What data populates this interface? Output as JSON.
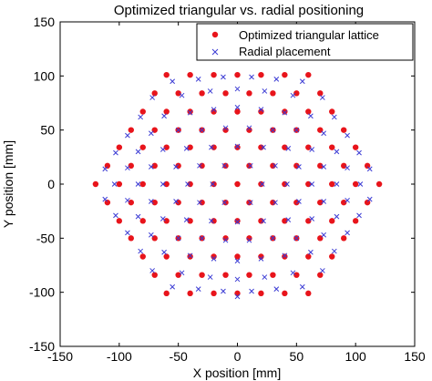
{
  "chart_data": {
    "type": "scatter",
    "title": "Optimized triangular vs. radial positioning",
    "xlabel": "X position [mm]",
    "ylabel": "Y position [mm]",
    "xlim": [
      -150,
      150
    ],
    "ylim": [
      -150,
      150
    ],
    "xticks": [
      "-150",
      "-100",
      "-50",
      "0",
      "50",
      "100",
      "150"
    ],
    "yticks": [
      "150",
      "100",
      "50",
      "0",
      "-50",
      "-100",
      "-150"
    ],
    "legend_position": "top-right",
    "grid": false,
    "series": [
      {
        "name": "Optimized triangular lattice",
        "marker": "dot",
        "color": "#e8141b",
        "points": [
          [
            -60,
            101
          ],
          [
            -40,
            101
          ],
          [
            -20,
            101
          ],
          [
            0,
            101
          ],
          [
            20,
            101
          ],
          [
            40,
            101
          ],
          [
            60,
            101
          ],
          [
            -70,
            84
          ],
          [
            -50,
            84
          ],
          [
            -30,
            84
          ],
          [
            -10,
            84
          ],
          [
            10,
            84
          ],
          [
            30,
            84
          ],
          [
            50,
            84
          ],
          [
            70,
            84
          ],
          [
            -80,
            67
          ],
          [
            -60,
            67
          ],
          [
            -40,
            67
          ],
          [
            -20,
            67
          ],
          [
            0,
            67
          ],
          [
            20,
            67
          ],
          [
            40,
            67
          ],
          [
            60,
            67
          ],
          [
            80,
            67
          ],
          [
            -90,
            50
          ],
          [
            -70,
            50
          ],
          [
            -50,
            50
          ],
          [
            -30,
            50
          ],
          [
            -10,
            50
          ],
          [
            10,
            50
          ],
          [
            30,
            50
          ],
          [
            50,
            50
          ],
          [
            70,
            50
          ],
          [
            90,
            50
          ],
          [
            -100,
            34
          ],
          [
            -80,
            34
          ],
          [
            -60,
            34
          ],
          [
            -40,
            34
          ],
          [
            -20,
            34
          ],
          [
            0,
            34
          ],
          [
            20,
            34
          ],
          [
            40,
            34
          ],
          [
            60,
            34
          ],
          [
            80,
            34
          ],
          [
            100,
            34
          ],
          [
            -110,
            17
          ],
          [
            -90,
            17
          ],
          [
            -70,
            17
          ],
          [
            -50,
            17
          ],
          [
            -30,
            17
          ],
          [
            -10,
            17
          ],
          [
            10,
            17
          ],
          [
            30,
            17
          ],
          [
            50,
            17
          ],
          [
            70,
            17
          ],
          [
            90,
            17
          ],
          [
            110,
            17
          ],
          [
            -120,
            0
          ],
          [
            -100,
            0
          ],
          [
            -80,
            0
          ],
          [
            -60,
            0
          ],
          [
            -40,
            0
          ],
          [
            -20,
            0
          ],
          [
            0,
            0
          ],
          [
            20,
            0
          ],
          [
            40,
            0
          ],
          [
            60,
            0
          ],
          [
            80,
            0
          ],
          [
            100,
            0
          ],
          [
            120,
            0
          ],
          [
            -110,
            -17
          ],
          [
            -90,
            -17
          ],
          [
            -70,
            -17
          ],
          [
            -50,
            -17
          ],
          [
            -30,
            -17
          ],
          [
            -10,
            -17
          ],
          [
            10,
            -17
          ],
          [
            30,
            -17
          ],
          [
            50,
            -17
          ],
          [
            70,
            -17
          ],
          [
            90,
            -17
          ],
          [
            110,
            -17
          ],
          [
            -100,
            -34
          ],
          [
            -80,
            -34
          ],
          [
            -60,
            -34
          ],
          [
            -40,
            -34
          ],
          [
            -20,
            -34
          ],
          [
            0,
            -34
          ],
          [
            20,
            -34
          ],
          [
            40,
            -34
          ],
          [
            60,
            -34
          ],
          [
            80,
            -34
          ],
          [
            100,
            -34
          ],
          [
            -90,
            -50
          ],
          [
            -70,
            -50
          ],
          [
            -50,
            -50
          ],
          [
            -30,
            -50
          ],
          [
            -10,
            -50
          ],
          [
            10,
            -50
          ],
          [
            30,
            -50
          ],
          [
            50,
            -50
          ],
          [
            70,
            -50
          ],
          [
            90,
            -50
          ],
          [
            -80,
            -67
          ],
          [
            -60,
            -67
          ],
          [
            -40,
            -67
          ],
          [
            -20,
            -67
          ],
          [
            0,
            -67
          ],
          [
            20,
            -67
          ],
          [
            40,
            -67
          ],
          [
            60,
            -67
          ],
          [
            80,
            -67
          ],
          [
            -70,
            -84
          ],
          [
            -50,
            -84
          ],
          [
            -30,
            -84
          ],
          [
            -10,
            -84
          ],
          [
            10,
            -84
          ],
          [
            30,
            -84
          ],
          [
            50,
            -84
          ],
          [
            70,
            -84
          ],
          [
            -60,
            -101
          ],
          [
            -40,
            -101
          ],
          [
            -20,
            -101
          ],
          [
            0,
            -101
          ],
          [
            20,
            -101
          ],
          [
            40,
            -101
          ],
          [
            60,
            -101
          ]
        ]
      },
      {
        "name": "Radial placement",
        "marker": "x",
        "color": "#3b3bd4",
        "points": [
          [
            -55,
            95
          ],
          [
            -33,
            97
          ],
          [
            -12,
            99
          ],
          [
            12,
            99
          ],
          [
            33,
            97
          ],
          [
            55,
            95
          ],
          [
            -72,
            80
          ],
          [
            -47,
            82
          ],
          [
            -23,
            86
          ],
          [
            0,
            88
          ],
          [
            23,
            86
          ],
          [
            47,
            82
          ],
          [
            72,
            80
          ],
          [
            -82,
            62
          ],
          [
            -62,
            63
          ],
          [
            -40,
            66
          ],
          [
            -20,
            69
          ],
          [
            0,
            71
          ],
          [
            20,
            69
          ],
          [
            40,
            66
          ],
          [
            62,
            63
          ],
          [
            82,
            62
          ],
          [
            -93,
            45
          ],
          [
            -73,
            47
          ],
          [
            -50,
            50
          ],
          [
            -30,
            50
          ],
          [
            -10,
            52
          ],
          [
            10,
            52
          ],
          [
            30,
            50
          ],
          [
            50,
            50
          ],
          [
            73,
            47
          ],
          [
            93,
            45
          ],
          [
            -103,
            29
          ],
          [
            -84,
            30
          ],
          [
            -63,
            32
          ],
          [
            -43,
            33
          ],
          [
            -22,
            34
          ],
          [
            0,
            35
          ],
          [
            22,
            34
          ],
          [
            43,
            33
          ],
          [
            63,
            32
          ],
          [
            84,
            30
          ],
          [
            103,
            29
          ],
          [
            -112,
            14
          ],
          [
            -93,
            15
          ],
          [
            -73,
            16
          ],
          [
            -52,
            16
          ],
          [
            -32,
            17
          ],
          [
            -11,
            17
          ],
          [
            11,
            17
          ],
          [
            32,
            17
          ],
          [
            52,
            16
          ],
          [
            73,
            16
          ],
          [
            93,
            15
          ],
          [
            112,
            14
          ],
          [
            -104,
            0
          ],
          [
            -84,
            0
          ],
          [
            -63,
            0
          ],
          [
            -42,
            0
          ],
          [
            -21,
            0
          ],
          [
            21,
            0
          ],
          [
            42,
            0
          ],
          [
            63,
            0
          ],
          [
            84,
            0
          ],
          [
            104,
            0
          ],
          [
            -112,
            -14
          ],
          [
            -93,
            -15
          ],
          [
            -73,
            -16
          ],
          [
            -52,
            -16
          ],
          [
            -32,
            -17
          ],
          [
            -11,
            -17
          ],
          [
            11,
            -17
          ],
          [
            32,
            -17
          ],
          [
            52,
            -16
          ],
          [
            73,
            -16
          ],
          [
            93,
            -15
          ],
          [
            112,
            -14
          ],
          [
            -103,
            -29
          ],
          [
            -84,
            -30
          ],
          [
            -63,
            -32
          ],
          [
            -43,
            -33
          ],
          [
            -22,
            -34
          ],
          [
            0,
            -35
          ],
          [
            22,
            -34
          ],
          [
            43,
            -33
          ],
          [
            63,
            -32
          ],
          [
            84,
            -30
          ],
          [
            103,
            -29
          ],
          [
            -93,
            -45
          ],
          [
            -73,
            -47
          ],
          [
            -50,
            -50
          ],
          [
            -30,
            -50
          ],
          [
            -10,
            -52
          ],
          [
            10,
            -52
          ],
          [
            30,
            -50
          ],
          [
            50,
            -50
          ],
          [
            73,
            -47
          ],
          [
            93,
            -45
          ],
          [
            -82,
            -62
          ],
          [
            -62,
            -63
          ],
          [
            -40,
            -66
          ],
          [
            -20,
            -69
          ],
          [
            0,
            -71
          ],
          [
            20,
            -69
          ],
          [
            40,
            -66
          ],
          [
            62,
            -63
          ],
          [
            82,
            -62
          ],
          [
            -72,
            -80
          ],
          [
            -47,
            -82
          ],
          [
            -23,
            -86
          ],
          [
            0,
            -88
          ],
          [
            23,
            -86
          ],
          [
            47,
            -82
          ],
          [
            72,
            -80
          ],
          [
            -55,
            -95
          ],
          [
            -33,
            -97
          ],
          [
            -12,
            -99
          ],
          [
            12,
            -99
          ],
          [
            33,
            -97
          ],
          [
            55,
            -95
          ],
          [
            0,
            -104
          ]
        ]
      }
    ]
  }
}
